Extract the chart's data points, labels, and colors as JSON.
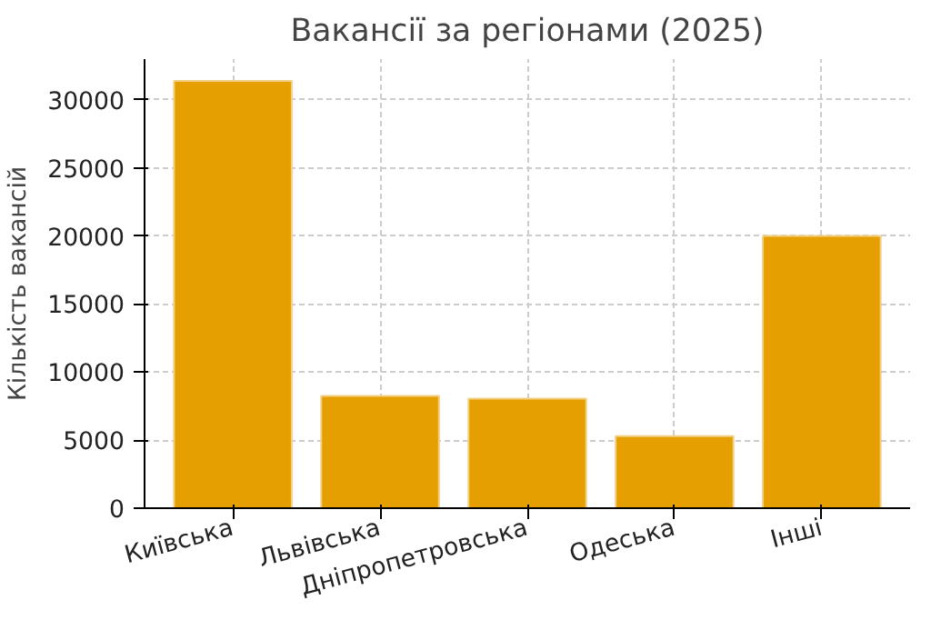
{
  "chart_data": {
    "type": "bar",
    "title": "Вакансії за регіонами (2025)",
    "ylabel": "Кількість вакансій",
    "categories": [
      "Київська",
      "Львівська",
      "Дніпропетровська",
      "Одеська",
      "Інші"
    ],
    "values": [
      31400,
      8250,
      8050,
      5300,
      20000
    ],
    "color": "#e69f00",
    "ylim": [
      0,
      33000
    ],
    "yticks": [
      0,
      5000,
      10000,
      15000,
      20000,
      25000,
      30000
    ],
    "grid": true
  }
}
